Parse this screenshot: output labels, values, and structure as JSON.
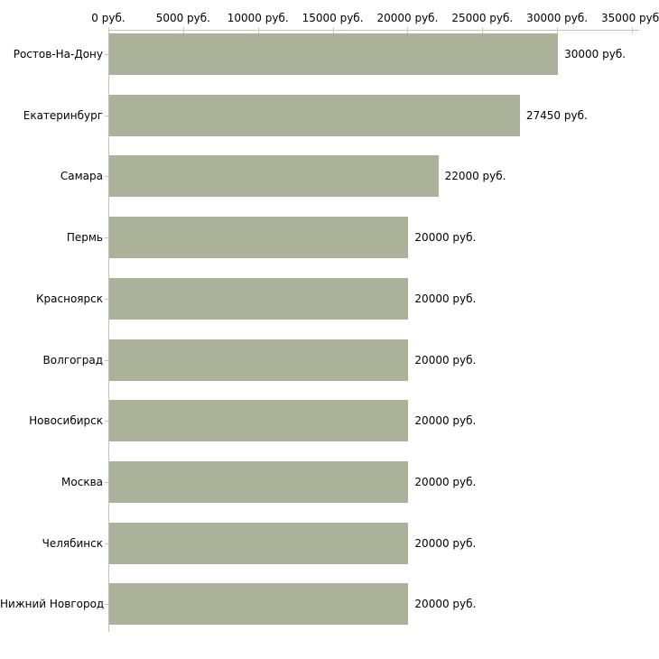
{
  "chart_data": {
    "type": "bar",
    "orientation": "horizontal",
    "title": "",
    "xlabel": "",
    "ylabel": "",
    "unit": "руб.",
    "xlim": [
      0,
      35000
    ],
    "grid": false,
    "legend": null,
    "categories": [
      "Ростов-На-Дону",
      "Екатеринбург",
      "Самара",
      "Пермь",
      "Красноярск",
      "Волгоград",
      "Новосибирск",
      "Москва",
      "Челябинск",
      "Нижний Новгород"
    ],
    "values": [
      30000,
      27450,
      22000,
      20000,
      20000,
      20000,
      20000,
      20000,
      20000,
      20000
    ],
    "bar_labels": [
      "30000 руб.",
      "27450 руб.",
      "22000 руб.",
      "20000 руб.",
      "20000 руб.",
      "20000 руб.",
      "20000 руб.",
      "20000 руб.",
      "20000 руб.",
      "20000 руб."
    ],
    "x_ticks": [
      {
        "value": 0,
        "label": "0 руб."
      },
      {
        "value": 5000,
        "label": "5000 руб."
      },
      {
        "value": 10000,
        "label": "10000 руб."
      },
      {
        "value": 15000,
        "label": "15000 руб."
      },
      {
        "value": 20000,
        "label": "20000 руб."
      },
      {
        "value": 25000,
        "label": "25000 руб."
      },
      {
        "value": 30000,
        "label": "30000 руб."
      },
      {
        "value": 35000,
        "label": "35000 руб."
      }
    ],
    "colors": {
      "bar": "#acb29a",
      "axis_line": "#c0c0c0",
      "tick_mark": "#c9c9a3",
      "text": "#000000",
      "background": "#ffffff"
    }
  }
}
